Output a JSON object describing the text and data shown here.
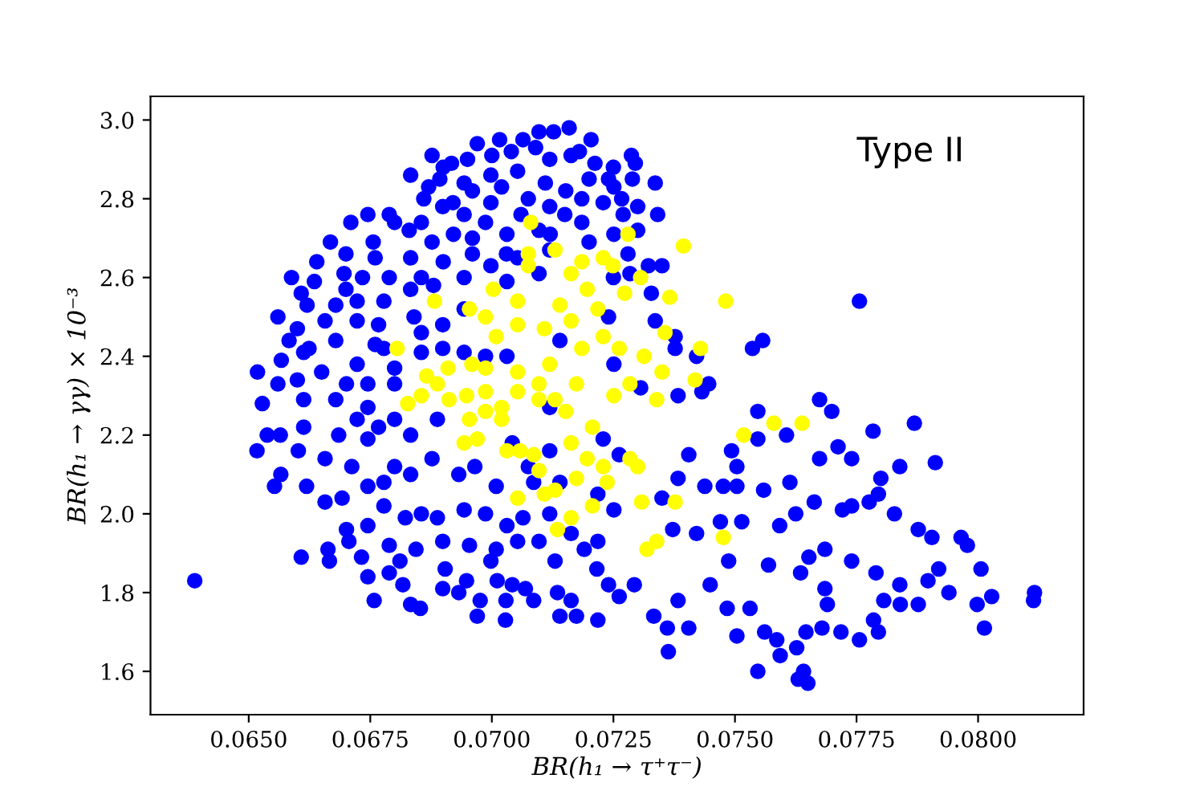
{
  "chart_data": {
    "type": "scatter",
    "xlabel": "BR(h₁ → τ⁺τ⁻)",
    "ylabel": "BR(h₁ → γγ) × 10⁻³",
    "annotations": [
      "Type II"
    ],
    "xlim": [
      0.06298,
      0.08217
    ],
    "ylim": [
      1.49,
      3.06
    ],
    "xticks": [
      {
        "value": 0.065,
        "label": "0.0650"
      },
      {
        "value": 0.0675,
        "label": "0.0675"
      },
      {
        "value": 0.07,
        "label": "0.0700"
      },
      {
        "value": 0.0725,
        "label": "0.0725"
      },
      {
        "value": 0.075,
        "label": "0.0750"
      },
      {
        "value": 0.0775,
        "label": "0.0775"
      },
      {
        "value": 0.08,
        "label": "0.0800"
      }
    ],
    "yticks": [
      1.6,
      1.8,
      {
        "value": 2.0,
        "label": "2.0"
      },
      2.2,
      2.4,
      2.6,
      2.8,
      {
        "value": 3.0,
        "label": "3.0"
      }
    ],
    "marker": "circle",
    "series": [
      {
        "color": "#0000ff",
        "x": [
          0.06389,
          0.06518,
          0.06528,
          0.06567,
          0.06583,
          0.06588,
          0.06608,
          0.06668,
          0.0671,
          0.06745,
          0.06789,
          0.06833,
          0.06877,
          0.06917,
          0.0697,
          0.07016,
          0.07064,
          0.07097,
          0.07127,
          0.07159,
          0.07204,
          0.07212,
          0.07287,
          0.07295,
          0.07289,
          0.07336,
          0.073,
          0.07341,
          0.0735,
          0.07756,
          0.07536,
          0.07557,
          0.07377,
          0.07421,
          0.07446,
          0.07432,
          0.07674,
          0.07699,
          0.07547,
          0.07869,
          0.07784,
          0.07712,
          0.0774,
          0.07839,
          0.07912,
          0.078,
          0.07795,
          0.0774,
          0.07776,
          0.07828,
          0.07877,
          0.07905,
          0.07965,
          0.07978,
          0.08006,
          0.07919,
          0.07897,
          0.0794,
          0.07877,
          0.0784,
          0.07839,
          0.07806,
          0.07998,
          0.08028,
          0.08013,
          0.08116,
          0.08114,
          0.07785,
          0.07795,
          0.07756,
          0.07718,
          0.07679,
          0.07646,
          0.07641,
          0.0763,
          0.0765,
          0.07547,
          0.07593,
          0.07627,
          0.07504,
          0.07363,
          0.07405,
          0.07361,
          0.07333,
          0.07262,
          0.07293,
          0.07383,
          0.07484,
          0.07531,
          0.07561,
          0.07586,
          0.07449,
          0.07487,
          0.07569,
          0.07635,
          0.07685,
          0.0769,
          0.0774,
          0.0779,
          0.07685,
          0.07652,
          0.07514,
          0.07592,
          0.07625,
          0.07663,
          0.07721,
          0.07674,
          0.07613,
          0.07559,
          0.07504,
          0.07438,
          0.07493,
          0.07547,
          0.07504,
          0.0747,
          0.07421,
          0.07372,
          0.0735,
          0.07405,
          0.07383,
          0.07476,
          0.07606,
          0.07322,
          0.07284,
          0.07328,
          0.07336,
          0.07377,
          0.07306,
          0.07383,
          0.06756,
          0.068,
          0.06855,
          0.0686,
          0.06893,
          0.06943,
          0.06998,
          0.07053,
          0.07119,
          0.07163,
          0.0724,
          0.07229,
          0.07152,
          0.07075,
          0.06998,
          0.06943,
          0.06899,
          0.06877,
          0.06921,
          0.06987,
          0.07031,
          0.07097,
          0.07185,
          0.07251,
          0.06833,
          0.06855,
          0.06789,
          0.06734,
          0.06696,
          0.06635,
          0.06679,
          0.06723,
          0.06778,
          0.06833,
          0.06943,
          0.06998,
          0.07053,
          0.07119,
          0.07097,
          0.07031,
          0.06943,
          0.06899,
          0.06855,
          0.06767,
          0.06723,
          0.06657,
          0.06624,
          0.06679,
          0.06723,
          0.06778,
          0.06855,
          0.06899,
          0.06943,
          0.06987,
          0.07031,
          0.06613,
          0.06701,
          0.06745,
          0.068,
          0.06613,
          0.06679,
          0.06745,
          0.07185,
          0.07119,
          0.07251,
          0.07267,
          0.0714,
          0.0724,
          0.07251,
          0.07119,
          0.06517,
          0.06538,
          0.06565,
          0.06553,
          0.06566,
          0.06602,
          0.06619,
          0.06608,
          0.06613,
          0.06657,
          0.06663,
          0.06666,
          0.06657,
          0.06692,
          0.06701,
          0.06712,
          0.06706,
          0.06732,
          0.06745,
          0.06758,
          0.06745,
          0.06745,
          0.06767,
          0.06778,
          0.06789,
          0.06789,
          0.06817,
          0.06833,
          0.06853,
          0.06811,
          0.06844,
          0.06822,
          0.06855,
          0.06888,
          0.06899,
          0.06904,
          0.06899,
          0.06932,
          0.0697,
          0.06976,
          0.06948,
          0.06954,
          0.07009,
          0.06998,
          0.07011,
          0.07029,
          0.07028,
          0.07042,
          0.07069,
          0.07086,
          0.07135,
          0.0714,
          0.07174,
          0.07163,
          0.07218,
          0.07216,
          0.0724,
          0.0713,
          0.0719,
          0.07163,
          0.07218,
          0.07053,
          0.07097,
          0.07064,
          0.07031,
          0.06987,
          0.06943,
          0.07009,
          0.06965,
          0.06932,
          0.06877,
          0.06833,
          0.068,
          0.06778,
          0.06833,
          0.06888,
          0.068,
          0.06723,
          0.06745,
          0.06685,
          0.07119,
          0.0714,
          0.07075,
          0.07042,
          0.07086,
          0.07251,
          0.07218,
          0.07262,
          0.07229,
          0.07119,
          0.069,
          0.0695,
          0.07,
          0.0704,
          0.0709,
          0.0718,
          0.0725,
          0.0687,
          0.0696,
          0.0702,
          0.0711,
          0.072,
          0.0727,
          0.0692,
          0.0706,
          0.0715,
          0.073,
          0.0683,
          0.0696,
          0.0712,
          0.072,
          0.0728,
          0.069,
          0.0696,
          0.0703,
          0.0725,
          0.0688,
          0.0676,
          0.067,
          0.0664,
          0.0662,
          0.0656,
          0.066,
          0.067,
          0.0676,
          0.0684,
          0.0656,
          0.0665,
          0.068,
          0.066
        ],
        "values": [
          1.83,
          2.36,
          2.28,
          2.39,
          2.44,
          2.6,
          2.56,
          2.69,
          2.74,
          2.76,
          2.76,
          2.86,
          2.91,
          2.89,
          2.94,
          2.95,
          2.95,
          2.97,
          2.97,
          2.98,
          2.95,
          2.89,
          2.91,
          2.89,
          2.85,
          2.84,
          2.78,
          2.76,
          2.63,
          2.54,
          2.42,
          2.44,
          2.45,
          2.4,
          2.33,
          2.31,
          2.29,
          2.26,
          2.26,
          2.23,
          2.21,
          2.17,
          2.14,
          2.12,
          2.13,
          2.09,
          2.05,
          2.02,
          2.03,
          2.0,
          1.96,
          1.94,
          1.94,
          1.92,
          1.86,
          1.86,
          1.83,
          1.8,
          1.77,
          1.77,
          1.82,
          1.78,
          1.77,
          1.79,
          1.71,
          1.8,
          1.78,
          1.73,
          1.7,
          1.68,
          1.7,
          1.71,
          1.7,
          1.6,
          1.58,
          1.57,
          1.6,
          1.64,
          1.66,
          1.69,
          1.65,
          1.71,
          1.71,
          1.74,
          1.79,
          1.82,
          1.78,
          1.76,
          1.76,
          1.7,
          1.68,
          1.82,
          1.88,
          1.87,
          1.85,
          1.81,
          1.77,
          1.88,
          1.85,
          1.91,
          1.89,
          1.98,
          1.97,
          2.0,
          2.03,
          2.01,
          2.14,
          2.08,
          2.06,
          2.07,
          2.07,
          2.16,
          2.19,
          2.12,
          1.98,
          1.95,
          1.96,
          2.04,
          2.15,
          2.09,
          2.07,
          2.2,
          2.63,
          2.61,
          2.56,
          2.49,
          2.42,
          2.32,
          2.3,
          2.69,
          2.74,
          2.74,
          2.8,
          2.85,
          2.84,
          2.86,
          2.87,
          2.9,
          2.91,
          2.85,
          2.79,
          2.82,
          2.8,
          2.79,
          2.76,
          2.78,
          2.69,
          2.71,
          2.74,
          2.71,
          2.72,
          2.74,
          2.71,
          2.65,
          2.6,
          2.6,
          2.6,
          2.61,
          2.59,
          2.53,
          2.54,
          2.54,
          2.57,
          2.6,
          2.63,
          2.65,
          2.67,
          2.61,
          2.59,
          2.52,
          2.48,
          2.46,
          2.48,
          2.49,
          2.49,
          2.42,
          2.44,
          2.38,
          2.42,
          2.41,
          2.42,
          2.41,
          2.4,
          2.4,
          2.41,
          2.33,
          2.33,
          2.33,
          2.29,
          2.29,
          2.27,
          2.8,
          2.78,
          2.83,
          2.8,
          2.44,
          2.5,
          2.38,
          2.27,
          2.16,
          2.2,
          2.2,
          2.07,
          2.1,
          2.16,
          2.07,
          1.89,
          2.22,
          2.03,
          1.91,
          1.88,
          2.14,
          2.04,
          1.96,
          2.12,
          1.93,
          1.89,
          1.84,
          1.78,
          2.07,
          1.97,
          2.22,
          2.02,
          1.92,
          1.85,
          1.82,
          1.77,
          1.76,
          1.88,
          1.91,
          1.99,
          2.0,
          1.99,
          1.93,
          1.86,
          1.81,
          1.8,
          1.74,
          1.78,
          1.83,
          1.92,
          1.91,
          1.88,
          1.83,
          1.78,
          1.73,
          1.82,
          1.81,
          1.78,
          1.8,
          1.74,
          1.74,
          1.78,
          1.73,
          1.86,
          1.82,
          1.88,
          1.91,
          1.95,
          1.93,
          1.93,
          1.93,
          1.99,
          1.97,
          2.0,
          2.01,
          2.07,
          2.12,
          2.1,
          2.14,
          2.1,
          2.12,
          2.08,
          2.2,
          2.24,
          2.24,
          2.24,
          2.19,
          2.2,
          2.0,
          2.08,
          2.12,
          2.18,
          2.08,
          2.01,
          2.05,
          2.15,
          2.19,
          2.16,
          2.88,
          2.9,
          2.91,
          2.92,
          2.93,
          2.92,
          2.88,
          2.83,
          2.82,
          2.83,
          2.84,
          2.85,
          2.76,
          2.79,
          2.76,
          2.76,
          2.72,
          2.72,
          2.7,
          2.71,
          2.69,
          2.66,
          2.64,
          2.66,
          2.66,
          2.6,
          2.58,
          2.65,
          2.66,
          2.64,
          2.53,
          2.5,
          2.47,
          2.57,
          2.43,
          2.5,
          2.33,
          2.36,
          2.37,
          2.34
        ]
      },
      {
        "color": "#ffff00",
        "x": [
          0.0758,
          0.07638,
          0.07518,
          0.07476,
          0.07377,
          0.07308,
          0.07339,
          0.07319,
          0.073,
          0.07284,
          0.07394,
          0.07366,
          0.07481,
          0.07429,
          0.07418,
          0.07356,
          0.07313,
          0.0735,
          0.0728,
          0.07306,
          0.07273,
          0.07249,
          0.07262,
          0.07284,
          0.07339,
          0.0708,
          0.0713,
          0.07075,
          0.07075,
          0.07229,
          0.07185,
          0.07163,
          0.07003,
          0.06882,
          0.06954,
          0.07053,
          0.06987,
          0.07009,
          0.07053,
          0.07108,
          0.0714,
          0.07196,
          0.07218,
          0.07163,
          0.07185,
          0.07229,
          0.07119,
          0.07053,
          0.06987,
          0.06959,
          0.06805,
          0.0691,
          0.06866,
          0.06888,
          0.06855,
          0.06827,
          0.06912,
          0.06948,
          0.06987,
          0.07053,
          0.07097,
          0.0713,
          0.07174,
          0.07251,
          0.06954,
          0.06943,
          0.0697,
          0.06987,
          0.0702,
          0.0702,
          0.07031,
          0.07058,
          0.07086,
          0.07097,
          0.07053,
          0.07108,
          0.0713,
          0.07135,
          0.07163,
          0.07207,
          0.07174,
          0.07163,
          0.07196,
          0.07229,
          0.07237,
          0.07207,
          0.07097,
          0.07152
        ],
        "values": [
          2.23,
          2.23,
          2.2,
          1.94,
          2.03,
          2.03,
          1.93,
          1.91,
          2.12,
          2.14,
          2.68,
          2.55,
          2.54,
          2.42,
          2.34,
          2.46,
          2.4,
          2.36,
          2.71,
          2.6,
          2.56,
          2.63,
          2.42,
          2.33,
          2.29,
          2.74,
          2.67,
          2.66,
          2.63,
          2.65,
          2.64,
          2.61,
          2.57,
          2.54,
          2.52,
          2.54,
          2.5,
          2.45,
          2.48,
          2.47,
          2.53,
          2.57,
          2.52,
          2.49,
          2.42,
          2.45,
          2.38,
          2.36,
          2.37,
          2.38,
          2.42,
          2.37,
          2.35,
          2.33,
          2.3,
          2.28,
          2.29,
          2.3,
          2.31,
          2.31,
          2.33,
          2.29,
          2.33,
          2.3,
          2.24,
          2.18,
          2.19,
          2.26,
          2.27,
          2.24,
          2.16,
          2.16,
          2.15,
          2.11,
          2.04,
          2.05,
          2.06,
          1.96,
          1.99,
          2.02,
          2.09,
          2.18,
          2.14,
          2.12,
          2.08,
          2.22,
          2.29,
          2.26
        ]
      }
    ]
  }
}
